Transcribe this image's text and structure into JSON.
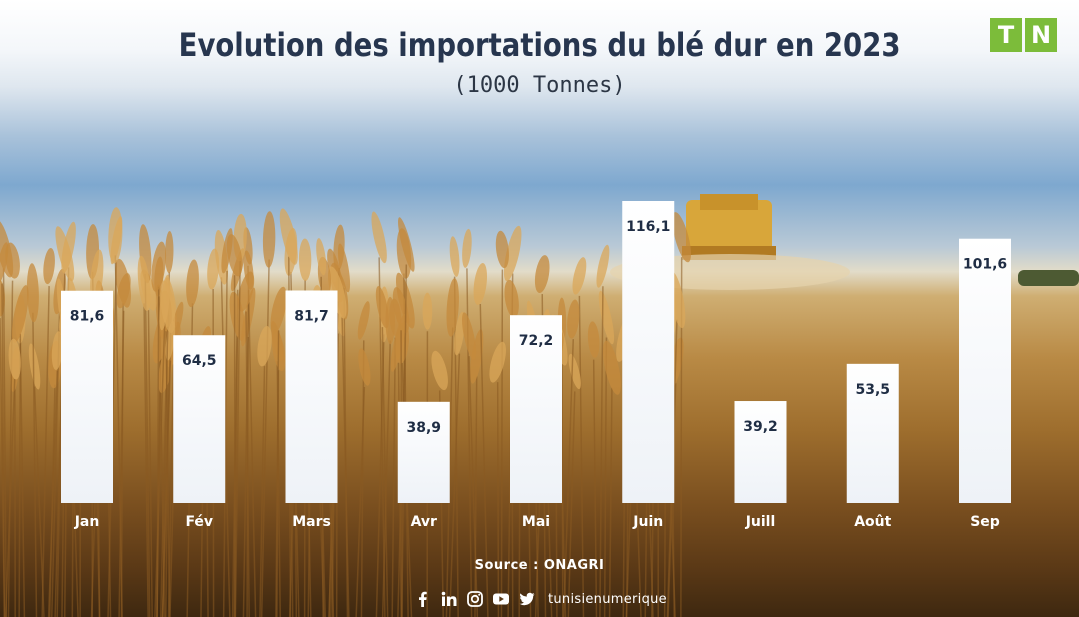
{
  "title": "Evolution des importations du blé dur en 2023",
  "subtitle": "(1000 Tonnes)",
  "logo": {
    "letter1": "T",
    "letter2": "N",
    "color": "#7cbc3a"
  },
  "chart_data": {
    "type": "bar",
    "title": "Evolution des importations du blé dur en 2023",
    "subtitle": "(1000 Tonnes)",
    "xlabel": "",
    "ylabel": "",
    "categories": [
      "Jan",
      "Fév",
      "Mars",
      "Avr",
      "Mai",
      "Juin",
      "Juill",
      "Août",
      "Sep"
    ],
    "values": [
      81.6,
      64.5,
      81.7,
      38.9,
      72.2,
      116.1,
      39.2,
      53.5,
      101.6
    ],
    "value_labels": [
      "81,6",
      "64,5",
      "81,7",
      "38,9",
      "72,2",
      "116,1",
      "39,2",
      "53,5",
      "101,6"
    ],
    "ylim": [
      0,
      116.1
    ],
    "grid": false,
    "legend": "none",
    "bar_color": "#ffffff"
  },
  "footer": {
    "source": "Source : ONAGRI",
    "site": "tunisienumerique",
    "icons": [
      "facebook-icon",
      "linkedin-icon",
      "instagram-icon",
      "youtube-icon",
      "twitter-icon"
    ]
  }
}
